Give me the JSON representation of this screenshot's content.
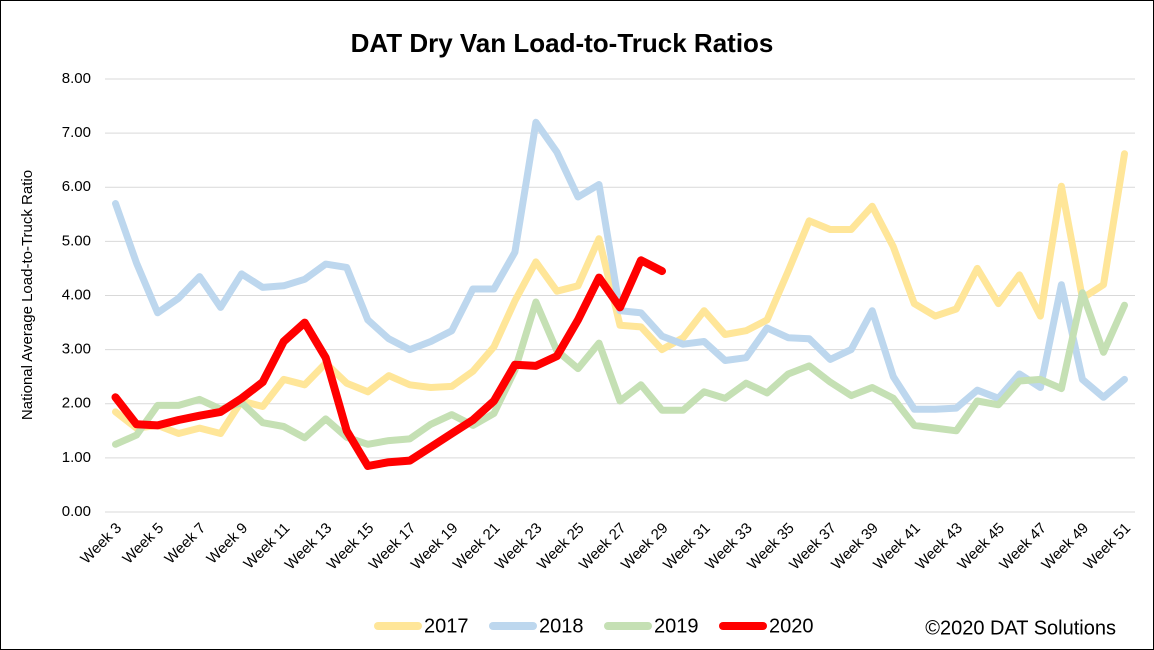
{
  "chart_data": {
    "type": "line",
    "title": "DAT Dry Van Load-to-Truck Ratios",
    "y_label": "National Average Load-to-Truck Ratio",
    "note": "©2020 DAT Solutions",
    "categories": [
      "Week 3",
      null,
      "Week 5",
      null,
      "Week 7",
      null,
      "Week 9",
      null,
      "Week 11",
      null,
      "Week 13",
      null,
      "Week 15",
      null,
      "Week 17",
      null,
      "Week 19",
      null,
      "Week 21",
      null,
      "Week 23",
      null,
      "Week 25",
      null,
      "Week 27",
      null,
      "Week 29",
      null,
      "Week 31",
      null,
      "Week 33",
      null,
      "Week 35",
      null,
      "Week 37",
      null,
      "Week 39",
      null,
      "Week 41",
      null,
      "Week 43",
      null,
      "Week 45",
      null,
      "Week 47",
      null,
      "Week 49",
      null,
      "Week 51"
    ],
    "ylim": [
      0,
      8
    ],
    "yticks": [
      {
        "value": 0,
        "label": "0.00"
      },
      {
        "value": 1,
        "label": "1.00"
      },
      {
        "value": 2,
        "label": "2.00"
      },
      {
        "value": 3,
        "label": "3.00"
      },
      {
        "value": 4,
        "label": "4.00"
      },
      {
        "value": 5,
        "label": "5.00"
      },
      {
        "value": 6,
        "label": "6.00"
      },
      {
        "value": 7,
        "label": "7.00"
      },
      {
        "value": 8,
        "label": "8.00"
      }
    ],
    "grid": true,
    "legend": "bottom",
    "series": [
      {
        "name": "2017",
        "color": "#ffe699",
        "values": [
          1.85,
          1.55,
          1.6,
          1.45,
          1.55,
          1.45,
          2.05,
          1.95,
          2.45,
          2.35,
          2.75,
          2.38,
          2.22,
          2.52,
          2.35,
          2.3,
          2.32,
          2.6,
          3.05,
          3.9,
          4.62,
          4.08,
          4.18,
          5.05,
          3.45,
          3.42,
          3.0,
          3.22,
          3.72,
          3.28,
          3.35,
          3.55,
          4.45,
          5.38,
          5.22,
          5.22,
          5.65,
          4.9,
          3.85,
          3.62,
          3.75,
          4.5,
          3.85,
          4.38,
          3.62,
          6.02,
          3.95,
          4.2,
          6.62
        ]
      },
      {
        "name": "2018",
        "color": "#bdd7ee",
        "values": [
          5.7,
          4.6,
          3.68,
          3.95,
          4.35,
          3.78,
          4.4,
          4.15,
          4.18,
          4.3,
          4.58,
          4.52,
          3.55,
          3.2,
          3.0,
          3.15,
          3.35,
          4.12,
          4.12,
          4.8,
          7.2,
          6.65,
          5.82,
          6.05,
          3.72,
          3.68,
          3.25,
          3.1,
          3.15,
          2.8,
          2.85,
          3.4,
          3.22,
          3.2,
          2.82,
          3.0,
          3.72,
          2.5,
          1.9,
          1.9,
          1.92,
          2.25,
          2.1,
          2.55,
          2.3,
          4.2,
          2.45,
          2.12,
          2.45
        ]
      },
      {
        "name": "2019",
        "color": "#c5e0b4",
        "values": [
          1.25,
          1.42,
          1.97,
          1.97,
          2.08,
          1.9,
          2.02,
          1.65,
          1.58,
          1.37,
          1.72,
          1.38,
          1.25,
          1.32,
          1.35,
          1.62,
          1.8,
          1.6,
          1.82,
          2.62,
          3.88,
          2.98,
          2.65,
          3.12,
          2.05,
          2.35,
          1.88,
          1.88,
          2.22,
          2.1,
          2.38,
          2.2,
          2.55,
          2.7,
          2.4,
          2.15,
          2.3,
          2.1,
          1.6,
          1.55,
          1.5,
          2.05,
          1.98,
          2.42,
          2.45,
          2.28,
          4.05,
          2.95,
          3.82
        ]
      },
      {
        "name": "2020",
        "color": "#ff0000",
        "values": [
          2.12,
          1.62,
          1.6,
          1.7,
          1.78,
          1.85,
          2.1,
          2.4,
          3.15,
          3.5,
          2.85,
          1.5,
          0.85,
          0.92,
          0.95,
          1.2,
          1.45,
          1.7,
          2.05,
          2.72,
          2.7,
          2.88,
          3.55,
          4.33,
          3.78,
          4.65,
          4.45,
          null,
          null,
          null,
          null,
          null,
          null,
          null,
          null,
          null,
          null,
          null,
          null,
          null,
          null,
          null,
          null,
          null,
          null,
          null,
          null,
          null,
          null
        ]
      }
    ]
  }
}
